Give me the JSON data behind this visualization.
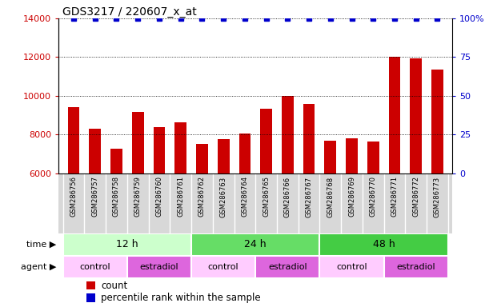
{
  "title": "GDS3217 / 220607_x_at",
  "samples": [
    "GSM286756",
    "GSM286757",
    "GSM286758",
    "GSM286759",
    "GSM286760",
    "GSM286761",
    "GSM286762",
    "GSM286763",
    "GSM286764",
    "GSM286765",
    "GSM286766",
    "GSM286767",
    "GSM286768",
    "GSM286769",
    "GSM286770",
    "GSM286771",
    "GSM286772",
    "GSM286773"
  ],
  "counts": [
    9400,
    8300,
    7250,
    9150,
    8400,
    8650,
    7500,
    7750,
    8050,
    9350,
    9980,
    9600,
    7700,
    7800,
    7650,
    12000,
    11950,
    11350
  ],
  "bar_color": "#cc0000",
  "dot_color": "#0000cc",
  "ylim_left": [
    6000,
    14000
  ],
  "ylim_right": [
    0,
    100
  ],
  "yticks_left": [
    6000,
    8000,
    10000,
    12000,
    14000
  ],
  "yticks_right": [
    0,
    25,
    50,
    75,
    100
  ],
  "ytick_labels_right": [
    "0",
    "25",
    "50",
    "75",
    "100%"
  ],
  "grid_values": [
    8000,
    10000,
    12000
  ],
  "time_groups": [
    {
      "label": "12 h",
      "start": 0,
      "end": 6,
      "color": "#ccffcc"
    },
    {
      "label": "24 h",
      "start": 6,
      "end": 12,
      "color": "#66dd66"
    },
    {
      "label": "48 h",
      "start": 12,
      "end": 18,
      "color": "#44cc44"
    }
  ],
  "agent_groups": [
    {
      "label": "control",
      "start": 0,
      "end": 3,
      "color": "#ffccff"
    },
    {
      "label": "estradiol",
      "start": 3,
      "end": 6,
      "color": "#dd66dd"
    },
    {
      "label": "control",
      "start": 6,
      "end": 9,
      "color": "#ffccff"
    },
    {
      "label": "estradiol",
      "start": 9,
      "end": 12,
      "color": "#dd66dd"
    },
    {
      "label": "control",
      "start": 12,
      "end": 15,
      "color": "#ffccff"
    },
    {
      "label": "estradiol",
      "start": 15,
      "end": 18,
      "color": "#dd66dd"
    }
  ],
  "legend_count_label": "count",
  "legend_pct_label": "percentile rank within the sample",
  "time_label": "time",
  "agent_label": "agent",
  "left_axis_color": "#cc0000",
  "right_axis_color": "#0000cc",
  "bar_width": 0.55,
  "xlabel_gray": "#cccccc",
  "sample_bg_color": "#d8d8d8"
}
